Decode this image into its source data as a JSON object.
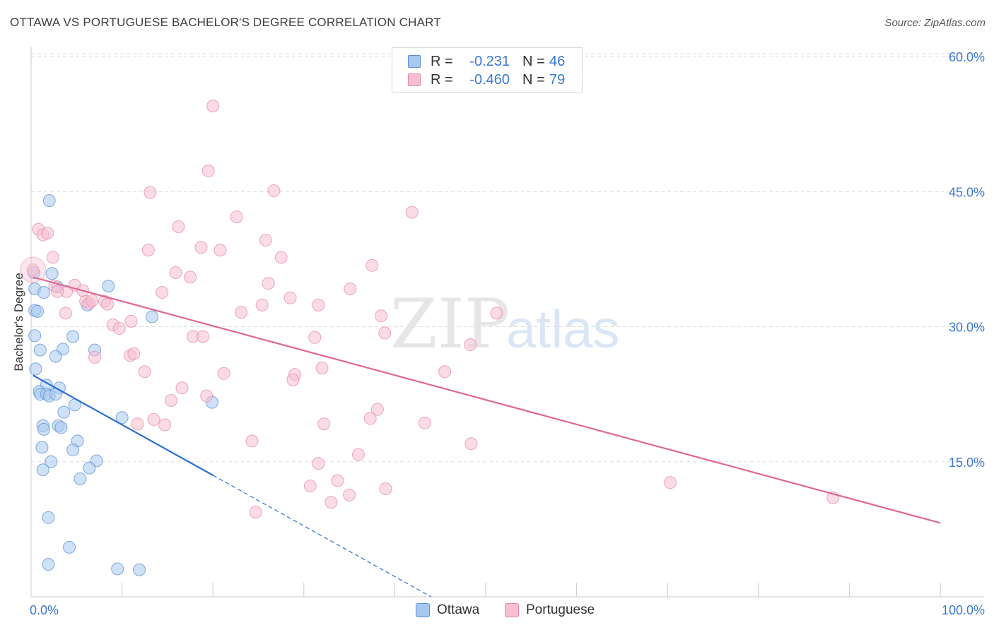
{
  "title": "OTTAWA VS PORTUGUESE BACHELOR'S DEGREE CORRELATION CHART",
  "source": "Source: ZipAtlas.com",
  "watermark": {
    "zip": "ZIP",
    "atlas": "atlas"
  },
  "colors": {
    "ottawa_fill": "#a8c8f0",
    "ottawa_stroke": "#5b8fd6",
    "ottawa_line": "#2a6fd0",
    "portuguese_fill": "#f7bfd0",
    "portuguese_stroke": "#e889a8",
    "portuguese_line": "#e0688f",
    "value_text": "#3a78d6",
    "grid": "#dcdcdc"
  },
  "legend": {
    "rows": [
      {
        "r_label": "R =",
        "r_value": "-0.231",
        "n_label": "N =",
        "n_value": "46"
      },
      {
        "r_label": "R =",
        "r_value": "-0.460",
        "n_label": "N =",
        "n_value": "79"
      }
    ]
  },
  "bottom_legend": {
    "ottawa": "Ottawa",
    "portuguese": "Portuguese"
  },
  "chart_data": {
    "type": "scatter",
    "title": "OTTAWA VS PORTUGUESE BACHELOR'S DEGREE CORRELATION CHART",
    "xlabel": "",
    "ylabel": "Bachelor's Degree",
    "xlim": [
      0,
      100
    ],
    "ylim": [
      0,
      62
    ],
    "x_tick_labels": [
      {
        "value": 0,
        "label": "0.0%"
      },
      {
        "value": 100,
        "label": "100.0%"
      }
    ],
    "y_tick_labels": [
      {
        "value": 15,
        "label": "15.0%"
      },
      {
        "value": 30,
        "label": "30.0%"
      },
      {
        "value": 45,
        "label": "45.0%"
      },
      {
        "value": 60,
        "label": "60.0%"
      }
    ],
    "series": [
      {
        "name": "Ottawa",
        "points": [
          [
            2.0,
            44.0
          ],
          [
            0.3,
            36.0
          ],
          [
            2.3,
            35.9
          ],
          [
            0.4,
            34.2
          ],
          [
            1.4,
            33.8
          ],
          [
            8.5,
            34.5
          ],
          [
            6.2,
            32.4
          ],
          [
            2.9,
            34.4
          ],
          [
            0.4,
            31.8
          ],
          [
            0.7,
            31.7
          ],
          [
            13.3,
            31.1
          ],
          [
            0.4,
            29.0
          ],
          [
            4.6,
            28.9
          ],
          [
            1.0,
            27.4
          ],
          [
            3.5,
            27.5
          ],
          [
            7.0,
            27.4
          ],
          [
            2.7,
            26.7
          ],
          [
            0.5,
            25.3
          ],
          [
            1.7,
            23.5
          ],
          [
            3.1,
            23.2
          ],
          [
            0.9,
            22.8
          ],
          [
            1.0,
            22.5
          ],
          [
            1.7,
            22.5
          ],
          [
            2.0,
            22.3
          ],
          [
            2.7,
            22.5
          ],
          [
            3.6,
            20.5
          ],
          [
            4.8,
            21.3
          ],
          [
            19.9,
            21.6
          ],
          [
            10.0,
            19.9
          ],
          [
            1.3,
            19.0
          ],
          [
            1.4,
            18.6
          ],
          [
            3.0,
            19.0
          ],
          [
            3.3,
            18.8
          ],
          [
            5.1,
            17.3
          ],
          [
            1.2,
            16.6
          ],
          [
            4.6,
            16.3
          ],
          [
            2.2,
            15.0
          ],
          [
            7.2,
            15.1
          ],
          [
            1.3,
            14.1
          ],
          [
            6.4,
            14.3
          ],
          [
            5.4,
            13.1
          ],
          [
            1.9,
            8.8
          ],
          [
            4.2,
            5.5
          ],
          [
            1.9,
            3.6
          ],
          [
            9.5,
            3.1
          ],
          [
            11.9,
            3.0
          ]
        ]
      },
      {
        "name": "Portuguese",
        "points": [
          [
            20.0,
            54.5
          ],
          [
            19.5,
            47.3
          ],
          [
            13.1,
            44.9
          ],
          [
            26.7,
            45.1
          ],
          [
            22.6,
            42.2
          ],
          [
            41.9,
            42.7
          ],
          [
            16.2,
            41.1
          ],
          [
            0.8,
            40.8
          ],
          [
            1.3,
            40.2
          ],
          [
            1.8,
            40.4
          ],
          [
            25.8,
            39.6
          ],
          [
            12.9,
            38.5
          ],
          [
            18.7,
            38.8
          ],
          [
            20.8,
            38.5
          ],
          [
            27.5,
            37.7
          ],
          [
            2.4,
            37.7
          ],
          [
            0.2,
            36.3
          ],
          [
            37.5,
            36.8
          ],
          [
            15.9,
            36.0
          ],
          [
            17.5,
            35.5
          ],
          [
            2.6,
            34.5
          ],
          [
            4.8,
            34.6
          ],
          [
            26.1,
            34.8
          ],
          [
            3.9,
            33.9
          ],
          [
            5.7,
            34.0
          ],
          [
            14.4,
            33.8
          ],
          [
            35.1,
            34.2
          ],
          [
            28.5,
            33.2
          ],
          [
            6.0,
            32.8
          ],
          [
            8.1,
            32.8
          ],
          [
            8.4,
            32.5
          ],
          [
            6.4,
            32.6
          ],
          [
            3.8,
            31.5
          ],
          [
            23.1,
            31.6
          ],
          [
            25.4,
            32.4
          ],
          [
            31.6,
            32.4
          ],
          [
            38.5,
            31.2
          ],
          [
            51.2,
            31.5
          ],
          [
            11.0,
            30.6
          ],
          [
            9.0,
            30.2
          ],
          [
            9.7,
            29.8
          ],
          [
            17.8,
            28.9
          ],
          [
            18.9,
            28.9
          ],
          [
            31.2,
            28.8
          ],
          [
            38.9,
            29.3
          ],
          [
            48.3,
            28.0
          ],
          [
            10.9,
            26.8
          ],
          [
            11.3,
            27.0
          ],
          [
            7.0,
            26.6
          ],
          [
            12.5,
            25.0
          ],
          [
            21.2,
            24.8
          ],
          [
            29.0,
            24.7
          ],
          [
            32.0,
            25.4
          ],
          [
            45.5,
            25.0
          ],
          [
            28.8,
            24.1
          ],
          [
            16.6,
            23.2
          ],
          [
            19.3,
            22.3
          ],
          [
            15.4,
            21.8
          ],
          [
            38.1,
            20.8
          ],
          [
            37.3,
            19.8
          ],
          [
            13.5,
            19.7
          ],
          [
            11.7,
            19.2
          ],
          [
            14.7,
            19.1
          ],
          [
            32.2,
            19.2
          ],
          [
            43.3,
            19.3
          ],
          [
            24.3,
            17.3
          ],
          [
            48.4,
            17.0
          ],
          [
            36.0,
            15.8
          ],
          [
            31.6,
            14.8
          ],
          [
            33.7,
            12.9
          ],
          [
            39.0,
            12.0
          ],
          [
            70.3,
            12.7
          ],
          [
            88.2,
            11.0
          ],
          [
            35.0,
            11.3
          ],
          [
            33.0,
            10.5
          ],
          [
            24.7,
            9.4
          ],
          [
            30.7,
            12.3
          ],
          [
            6.7,
            32.9
          ],
          [
            2.9,
            33.9
          ]
        ]
      }
    ],
    "trendlines": [
      {
        "series": "Ottawa",
        "solid": [
          [
            0.2,
            24.6
          ],
          [
            20.0,
            13.5
          ]
        ],
        "dashed": [
          [
            20.0,
            13.5
          ],
          [
            44.0,
            0.0
          ]
        ]
      },
      {
        "series": "Portuguese",
        "solid": [
          [
            0.2,
            35.5
          ],
          [
            100.0,
            8.2
          ]
        ]
      }
    ],
    "grid": true,
    "legend_position": "top-center"
  }
}
